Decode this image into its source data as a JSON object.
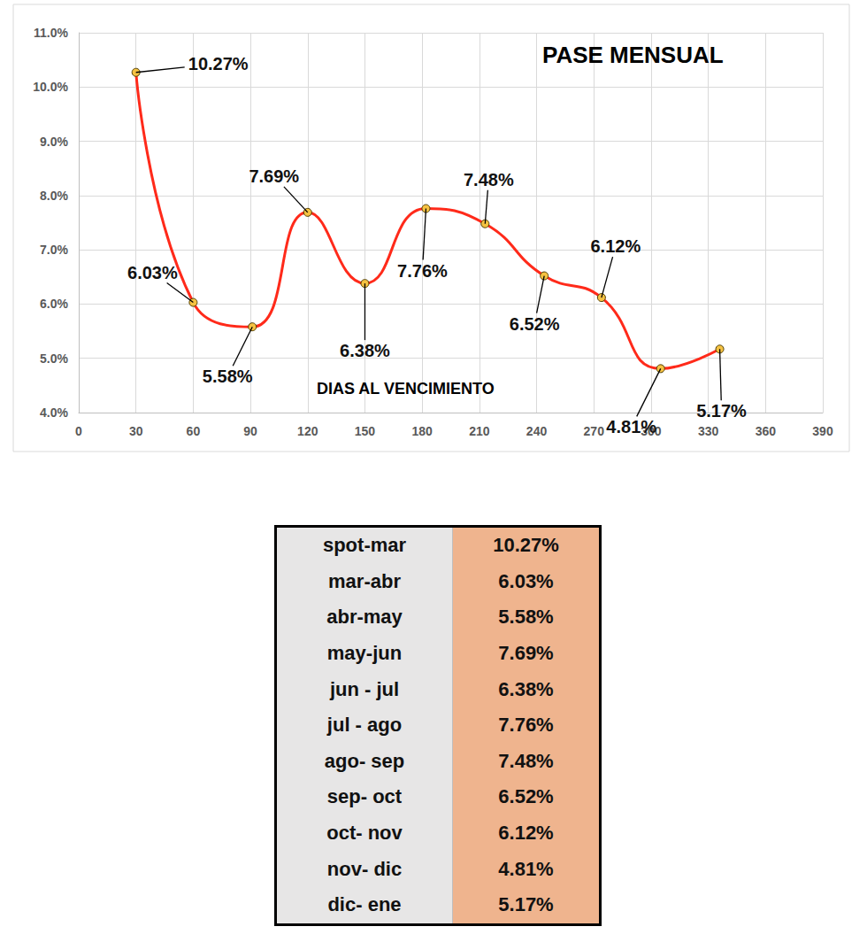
{
  "chart_data": {
    "type": "line",
    "title": "PASE MENSUAL",
    "x_label": "DIAS AL VENCIMIENTO",
    "x": [
      30,
      60,
      91,
      120,
      150,
      182,
      213,
      244,
      274,
      305,
      336
    ],
    "values": [
      10.27,
      6.03,
      5.58,
      7.69,
      6.38,
      7.76,
      7.48,
      6.52,
      6.12,
      4.81,
      5.17
    ],
    "value_labels": [
      "10.27%",
      "6.03%",
      "5.58%",
      "7.69%",
      "6.38%",
      "7.76%",
      "7.48%",
      "6.52%",
      "6.12%",
      "4.81%",
      "5.17%"
    ],
    "color": "#ff2a1a",
    "marker": "circle",
    "line_style": "solid",
    "xlim": [
      0,
      390
    ],
    "xticks": [
      0,
      30,
      60,
      90,
      120,
      150,
      180,
      210,
      240,
      270,
      300,
      330,
      360,
      390
    ],
    "ylim": [
      4,
      11
    ],
    "yticks": [
      {
        "value": 4,
        "label": "4.0%"
      },
      {
        "value": 5,
        "label": "5.0%"
      },
      {
        "value": 6,
        "label": "6.0%"
      },
      {
        "value": 7,
        "label": "7.0%"
      },
      {
        "value": 8,
        "label": "8.0%"
      },
      {
        "value": 9,
        "label": "9.0%"
      },
      {
        "value": 10,
        "label": "10.0%"
      },
      {
        "value": 11,
        "label": "11.0%"
      }
    ],
    "grid": true,
    "data_labels": true
  },
  "table": {
    "rows": [
      [
        "spot-mar",
        "10.27%"
      ],
      [
        "mar-abr",
        "6.03%"
      ],
      [
        "abr-may",
        "5.58%"
      ],
      [
        "may-jun",
        "7.69%"
      ],
      [
        "jun - jul",
        "6.38%"
      ],
      [
        "jul - ago",
        "7.76%"
      ],
      [
        "ago- sep",
        "7.48%"
      ],
      [
        "sep- oct",
        "6.52%"
      ],
      [
        "oct- nov",
        "6.12%"
      ],
      [
        "nov- dic",
        "4.81%"
      ],
      [
        "dic- ene",
        "5.17%"
      ]
    ]
  }
}
